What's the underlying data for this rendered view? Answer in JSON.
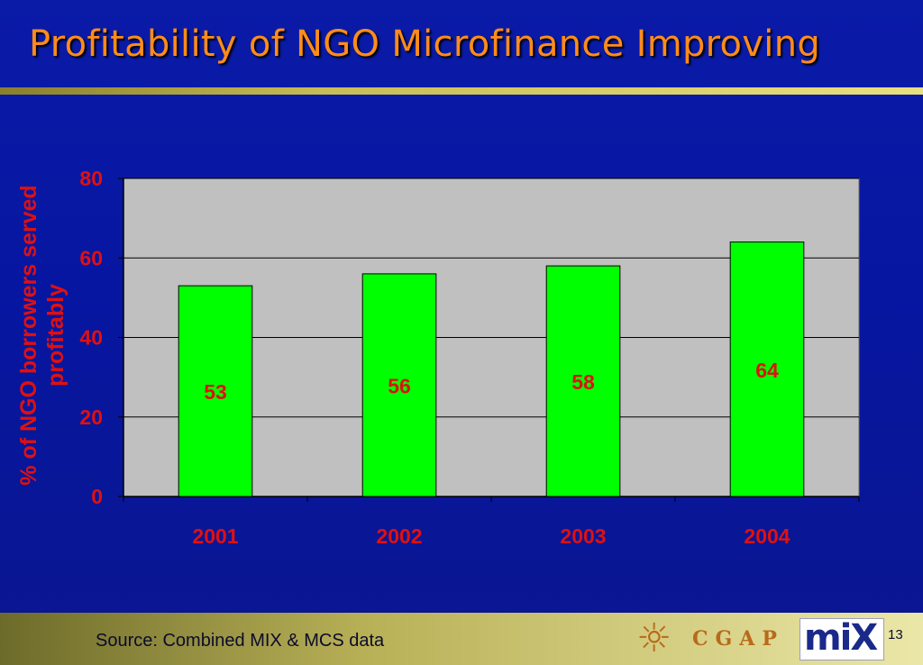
{
  "slide": {
    "title": "Profitability of NGO Microfinance Improving",
    "page_number": "13"
  },
  "footer": {
    "source": "Source: Combined MIX & MCS data",
    "cgap_logo_text": "CGAP",
    "mix_logo_text": "miX"
  },
  "colors": {
    "background": "#0716a0",
    "title": "#ff8c1a",
    "axis_text": "#e01010",
    "bar": "#00ff00",
    "plot_area": "#c0c0c0"
  },
  "chart_data": {
    "type": "bar",
    "title": "",
    "xlabel": "",
    "ylabel": "% of NGO borrowers served profitably",
    "ylabel_lines": [
      "% of NGO borrowers served",
      "profitably"
    ],
    "categories": [
      "2001",
      "2002",
      "2003",
      "2004"
    ],
    "values": [
      53,
      56,
      58,
      64
    ],
    "data_labels": [
      "53",
      "56",
      "58",
      "64"
    ],
    "ylim": [
      0,
      80
    ],
    "yticks": [
      0,
      20,
      40,
      60,
      80
    ],
    "grid": true,
    "legend": "none"
  }
}
